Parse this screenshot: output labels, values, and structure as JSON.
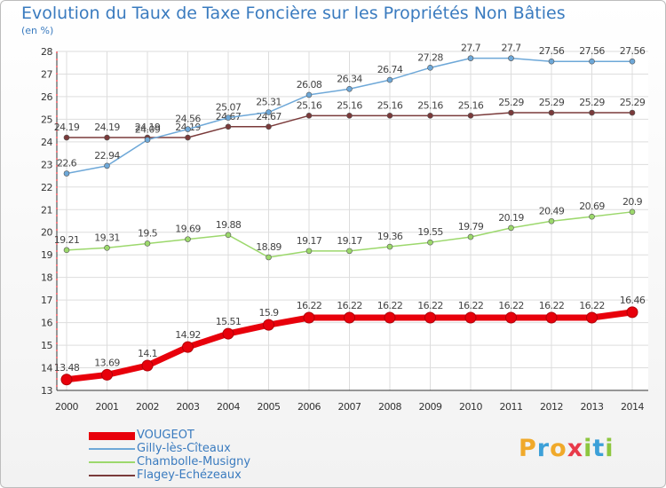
{
  "title": "Evolution du Taux de Taxe Foncière sur les Propriétés Non Bâties",
  "unit_label": "(en %)",
  "brand": {
    "text": "Proxiti",
    "letters": [
      "P",
      "r",
      "o",
      "x",
      "i",
      "t",
      "i"
    ],
    "colors": [
      "#f0a92a",
      "#3ca0d8",
      "#f0a92a",
      "#e83a4a",
      "#8dc63f",
      "#3ca0d8",
      "#8dc63f"
    ]
  },
  "chart_data": {
    "type": "line",
    "x": [
      2000,
      2001,
      2002,
      2003,
      2004,
      2005,
      2006,
      2007,
      2008,
      2009,
      2010,
      2011,
      2012,
      2013,
      2014
    ],
    "ylim": [
      13,
      28
    ],
    "yticks": [
      13,
      14,
      15,
      16,
      17,
      18,
      19,
      20,
      21,
      22,
      23,
      24,
      25,
      26,
      27,
      28
    ],
    "grid": true,
    "legend_position": "bottom-left",
    "series": [
      {
        "name": "VOUGEOT",
        "color": "#e8000b",
        "values": [
          13.48,
          13.69,
          14.1,
          14.92,
          15.51,
          15.9,
          16.22,
          16.22,
          16.22,
          16.22,
          16.22,
          16.22,
          16.22,
          16.22,
          16.46
        ]
      },
      {
        "name": "Gilly-lès-Cîteaux",
        "color": "#6ea8d8",
        "values": [
          22.6,
          22.94,
          24.09,
          24.56,
          25.07,
          25.31,
          26.08,
          26.34,
          26.74,
          27.28,
          27.7,
          27.7,
          27.56,
          27.56,
          27.56
        ]
      },
      {
        "name": "Chambolle-Musigny",
        "color": "#9cd86c",
        "values": [
          19.21,
          19.31,
          19.5,
          19.69,
          19.88,
          18.89,
          19.17,
          19.17,
          19.36,
          19.55,
          19.79,
          20.19,
          20.49,
          20.69,
          20.9
        ]
      },
      {
        "name": "Flagey-Echézeaux",
        "color": "#7a3a3a",
        "values": [
          24.19,
          24.19,
          24.19,
          24.19,
          24.67,
          24.67,
          25.16,
          25.16,
          25.16,
          25.16,
          25.16,
          25.29,
          25.29,
          25.29,
          25.29
        ]
      }
    ]
  }
}
